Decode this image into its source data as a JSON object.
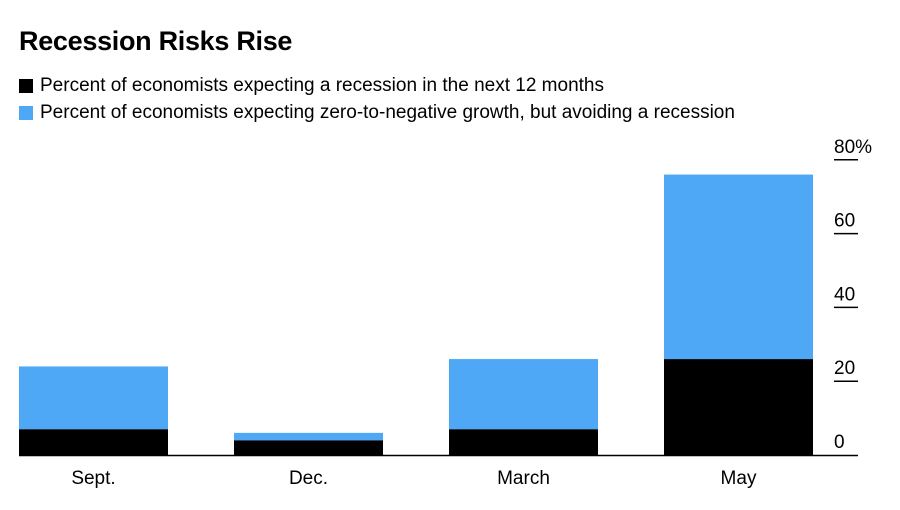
{
  "chart_data": {
    "type": "bar",
    "stacked": true,
    "title": "Recession Risks Rise",
    "categories": [
      "Sept.",
      "Dec.",
      "March",
      "May"
    ],
    "series": [
      {
        "name": "Percent of economists expecting a recession in the next 12 months",
        "color": "#000000",
        "values": [
          7,
          4,
          7,
          26
        ]
      },
      {
        "name": "Percent of economists expecting zero-to-negative growth, but avoiding a recession",
        "color": "#4fa8f5",
        "values": [
          17,
          2,
          19,
          50
        ]
      }
    ],
    "ylim": [
      0,
      80
    ],
    "yticks": [
      0,
      20,
      40,
      60,
      80
    ],
    "ytick_labels": [
      "0",
      "20",
      "40",
      "60",
      "80%"
    ],
    "y_axis_position": "right",
    "grid": false,
    "legend_position": "top-left",
    "xlabel": "",
    "ylabel": ""
  }
}
